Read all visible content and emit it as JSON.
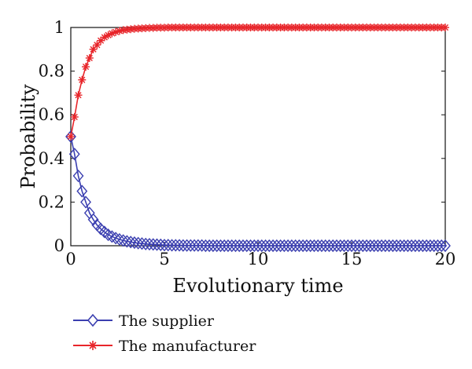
{
  "chart_data": {
    "type": "line",
    "title": "",
    "xlabel": "Evolutionary time",
    "ylabel": "Probability",
    "xlim": [
      0,
      20
    ],
    "ylim": [
      0,
      1
    ],
    "x_ticks": [
      "0",
      "5",
      "10",
      "15",
      "20"
    ],
    "y_ticks": [
      "0",
      "0.2",
      "0.4",
      "0.6",
      "0.8",
      "1"
    ],
    "grid": false,
    "legend_position": "below",
    "series": [
      {
        "name": "The supplier",
        "color": "#3b3fb0",
        "marker": "diamond",
        "x": [
          0,
          0.2,
          0.4,
          0.6,
          0.8,
          1.0,
          1.2,
          1.4,
          1.6,
          1.8,
          2.0,
          2.2,
          2.4,
          2.6,
          2.8,
          3.0,
          3.2,
          3.4,
          3.6,
          3.8,
          4.0,
          4.2,
          4.4,
          4.6,
          4.8,
          5.0,
          5.2,
          5.4,
          5.6,
          5.8,
          6.0,
          6.2,
          6.4,
          6.6,
          6.8,
          7.0,
          7.2,
          7.4,
          7.6,
          7.8,
          8.0,
          8.2,
          8.4,
          8.6,
          8.8,
          9.0,
          9.2,
          9.4,
          9.6,
          9.8,
          10.0,
          10.2,
          10.4,
          10.6,
          10.8,
          11.0,
          11.2,
          11.4,
          11.6,
          11.8,
          12.0,
          12.2,
          12.4,
          12.6,
          12.8,
          13.0,
          13.2,
          13.4,
          13.6,
          13.8,
          14.0,
          14.2,
          14.4,
          14.6,
          14.8,
          15.0,
          15.2,
          15.4,
          15.6,
          15.8,
          16.0,
          16.2,
          16.4,
          16.6,
          16.8,
          17.0,
          17.2,
          17.4,
          17.6,
          17.8,
          18.0,
          18.2,
          18.4,
          18.6,
          18.8,
          19.0,
          19.2,
          19.4,
          19.6,
          19.8,
          20.0
        ],
        "y": [
          0.5,
          0.42,
          0.32,
          0.25,
          0.2,
          0.15,
          0.12,
          0.095,
          0.077,
          0.063,
          0.05,
          0.042,
          0.035,
          0.029,
          0.024,
          0.02,
          0.017,
          0.014,
          0.012,
          0.01,
          0.008,
          0.007,
          0.006,
          0.005,
          0.004,
          0.003,
          0.003,
          0.002,
          0.002,
          0.002,
          0.001,
          0.001,
          0.001,
          0.001,
          0.001,
          0.001,
          0,
          0,
          0,
          0,
          0,
          0,
          0,
          0,
          0,
          0,
          0,
          0,
          0,
          0,
          0,
          0,
          0,
          0,
          0,
          0,
          0,
          0,
          0,
          0,
          0,
          0,
          0,
          0,
          0,
          0,
          0,
          0,
          0,
          0,
          0,
          0,
          0,
          0,
          0,
          0,
          0,
          0,
          0,
          0,
          0,
          0,
          0,
          0,
          0,
          0,
          0,
          0,
          0,
          0,
          0,
          0,
          0,
          0,
          0,
          0,
          0,
          0,
          0,
          0,
          0
        ]
      },
      {
        "name": "The manufacturer",
        "color": "#e8252a",
        "marker": "asterisk",
        "x": [
          0,
          0.2,
          0.4,
          0.6,
          0.8,
          1.0,
          1.2,
          1.4,
          1.6,
          1.8,
          2.0,
          2.2,
          2.4,
          2.6,
          2.8,
          3.0,
          3.2,
          3.4,
          3.6,
          3.8,
          4.0,
          4.2,
          4.4,
          4.6,
          4.8,
          5.0,
          5.2,
          5.4,
          5.6,
          5.8,
          6.0,
          6.2,
          6.4,
          6.6,
          6.8,
          7.0,
          7.2,
          7.4,
          7.6,
          7.8,
          8.0,
          8.2,
          8.4,
          8.6,
          8.8,
          9.0,
          9.2,
          9.4,
          9.6,
          9.8,
          10.0,
          10.2,
          10.4,
          10.6,
          10.8,
          11.0,
          11.2,
          11.4,
          11.6,
          11.8,
          12.0,
          12.2,
          12.4,
          12.6,
          12.8,
          13.0,
          13.2,
          13.4,
          13.6,
          13.8,
          14.0,
          14.2,
          14.4,
          14.6,
          14.8,
          15.0,
          15.2,
          15.4,
          15.6,
          15.8,
          16.0,
          16.2,
          16.4,
          16.6,
          16.8,
          17.0,
          17.2,
          17.4,
          17.6,
          17.8,
          18.0,
          18.2,
          18.4,
          18.6,
          18.8,
          19.0,
          19.2,
          19.4,
          19.6,
          19.8,
          20.0
        ],
        "y": [
          0.5,
          0.59,
          0.69,
          0.76,
          0.82,
          0.86,
          0.9,
          0.92,
          0.94,
          0.955,
          0.965,
          0.973,
          0.979,
          0.984,
          0.988,
          0.99,
          0.992,
          0.994,
          0.995,
          0.996,
          0.997,
          0.998,
          0.998,
          0.999,
          0.999,
          0.999,
          1,
          1,
          1,
          1,
          1,
          1,
          1,
          1,
          1,
          1,
          1,
          1,
          1,
          1,
          1,
          1,
          1,
          1,
          1,
          1,
          1,
          1,
          1,
          1,
          1,
          1,
          1,
          1,
          1,
          1,
          1,
          1,
          1,
          1,
          1,
          1,
          1,
          1,
          1,
          1,
          1,
          1,
          1,
          1,
          1,
          1,
          1,
          1,
          1,
          1,
          1,
          1,
          1,
          1,
          1,
          1,
          1,
          1,
          1,
          1,
          1,
          1,
          1,
          1,
          1,
          1,
          1,
          1,
          1,
          1,
          1,
          1,
          1,
          1,
          1
        ]
      }
    ]
  }
}
